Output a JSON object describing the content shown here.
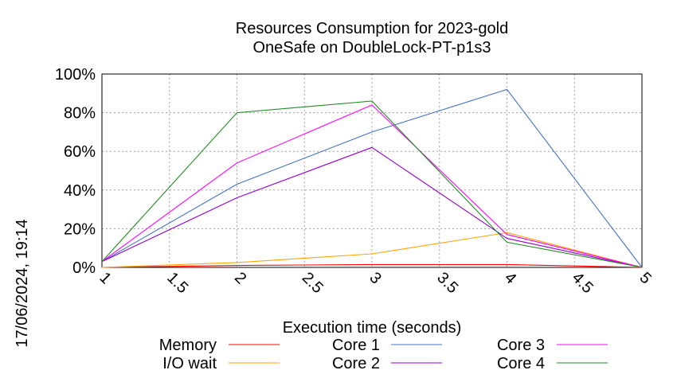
{
  "chart_data": {
    "type": "line",
    "title": "Resources Consumption for 2023-gold",
    "subtitle": "OneSafe on DoubleLock-PT-p1s3",
    "xlabel": "Execution time (seconds)",
    "ylabel": "",
    "xlim": [
      1,
      5
    ],
    "ylim": [
      0,
      100
    ],
    "x_ticks": [
      "1",
      "1.5",
      "2",
      "2.5",
      "3",
      "3.5",
      "4",
      "4.5",
      "5"
    ],
    "y_ticks": [
      "0%",
      "20%",
      "40%",
      "60%",
      "80%",
      "100%"
    ],
    "grid": true,
    "legend_position": "bottom",
    "x": [
      1,
      2,
      3,
      4,
      5
    ],
    "series": [
      {
        "name": "Memory",
        "color": "#ff0000",
        "values": [
          0,
          1,
          1.5,
          1.5,
          0
        ]
      },
      {
        "name": "I/O wait",
        "color": "#ffa500",
        "values": [
          0,
          2.5,
          7,
          18,
          0
        ]
      },
      {
        "name": "Core 1",
        "color": "#4472c4",
        "values": [
          3,
          43,
          70,
          92,
          0
        ]
      },
      {
        "name": "Core 2",
        "color": "#9400d3",
        "values": [
          3,
          36,
          62,
          15,
          0
        ]
      },
      {
        "name": "Core 3",
        "color": "#ff00ff",
        "values": [
          3,
          54,
          84,
          17,
          0
        ]
      },
      {
        "name": "Core 4",
        "color": "#228b22",
        "values": [
          3,
          80,
          86,
          13,
          0
        ]
      }
    ]
  },
  "timestamp": "17/06/2024, 19:14"
}
